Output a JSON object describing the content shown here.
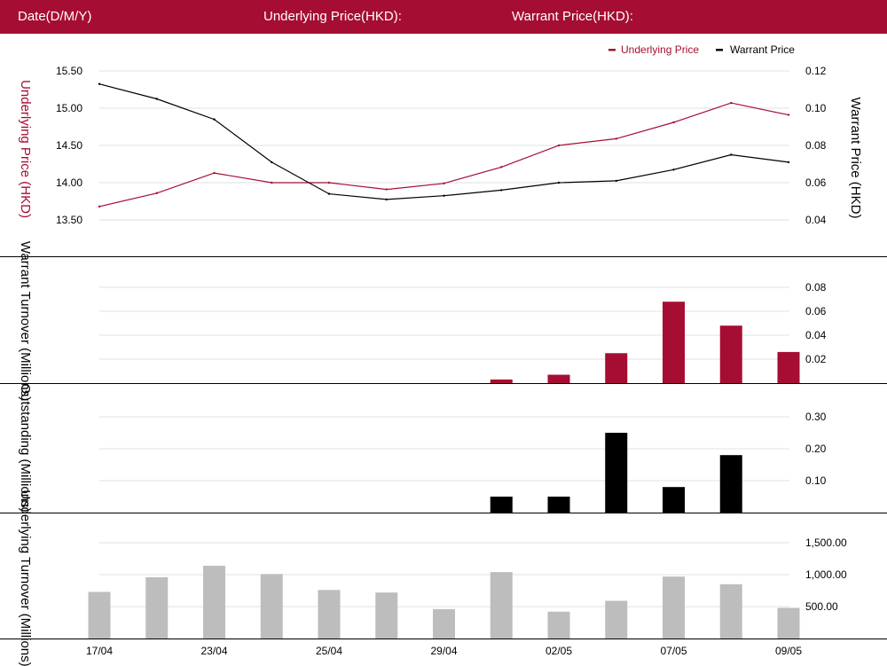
{
  "header": {
    "date_label": "Date(D/M/Y)",
    "underlying_label": "Underlying Price(HKD):",
    "warrant_label": "Warrant Price(HKD):"
  },
  "colors": {
    "header_bg": "#a50e32",
    "underlying": "#a50e32",
    "warrant": "#000000",
    "warrant_turnover": "#a50e32",
    "outstanding": "#000000",
    "underlying_turnover": "#bdbdbd",
    "grid": "#e0e0e0"
  },
  "chart_data": [
    {
      "type": "line",
      "legend": [
        "Underlying Price",
        "Warrant Price"
      ],
      "legend_position": "top-right",
      "ylabel_left": "Underlying Price (HKD)",
      "ylabel_right": "Warrant  Price (HKD)",
      "left_ticks": [
        "15.50",
        "15.00",
        "14.50",
        "14.00",
        "13.50"
      ],
      "right_ticks": [
        "0.12",
        "0.10",
        "0.08",
        "0.06",
        "0.04"
      ],
      "ylim_left": [
        13.5,
        15.5
      ],
      "ylim_right": [
        0.04,
        0.12
      ],
      "series": [
        {
          "name": "Underlying Price",
          "axis": "left",
          "values": [
            13.68,
            13.86,
            14.13,
            14.0,
            14.0,
            13.91,
            13.99,
            14.21,
            14.5,
            14.59,
            14.81,
            15.07,
            14.91
          ]
        },
        {
          "name": "Warrant Price",
          "axis": "right",
          "values": [
            0.113,
            0.105,
            0.094,
            0.071,
            0.054,
            0.051,
            0.053,
            0.056,
            0.06,
            0.061,
            0.067,
            0.075,
            0.071
          ]
        }
      ]
    },
    {
      "type": "bar",
      "ylabel": "Warrant  Turnover (Millions)",
      "ticks": [
        "0.08",
        "0.06",
        "0.04",
        "0.02"
      ],
      "ylim": [
        0,
        0.08
      ],
      "values": [
        0,
        0,
        0,
        0,
        0,
        0,
        0,
        0.003,
        0.007,
        0.025,
        0.068,
        0.048,
        0.026
      ]
    },
    {
      "type": "bar",
      "ylabel": "Outstanding (Millions)",
      "ticks": [
        "0.30",
        "0.20",
        "0.10"
      ],
      "ylim": [
        0,
        0.3
      ],
      "values": [
        0,
        0,
        0,
        0,
        0,
        0,
        0,
        0.05,
        0.05,
        0.25,
        0.08,
        0.18,
        0
      ]
    },
    {
      "type": "bar",
      "ylabel": "Underlying Turnover (Millions)",
      "ticks": [
        "1,500.00",
        "1,000.00",
        "500.00"
      ],
      "ylim": [
        0,
        1500
      ],
      "values": [
        730,
        960,
        1140,
        1010,
        760,
        720,
        460,
        1040,
        420,
        590,
        970,
        850,
        480
      ]
    }
  ],
  "x_axis": {
    "labels": [
      "17/04",
      "23/04",
      "25/04",
      "29/04",
      "02/05",
      "07/05",
      "09/05"
    ],
    "label_positions": [
      0,
      2,
      4,
      6,
      8,
      10,
      12
    ]
  }
}
